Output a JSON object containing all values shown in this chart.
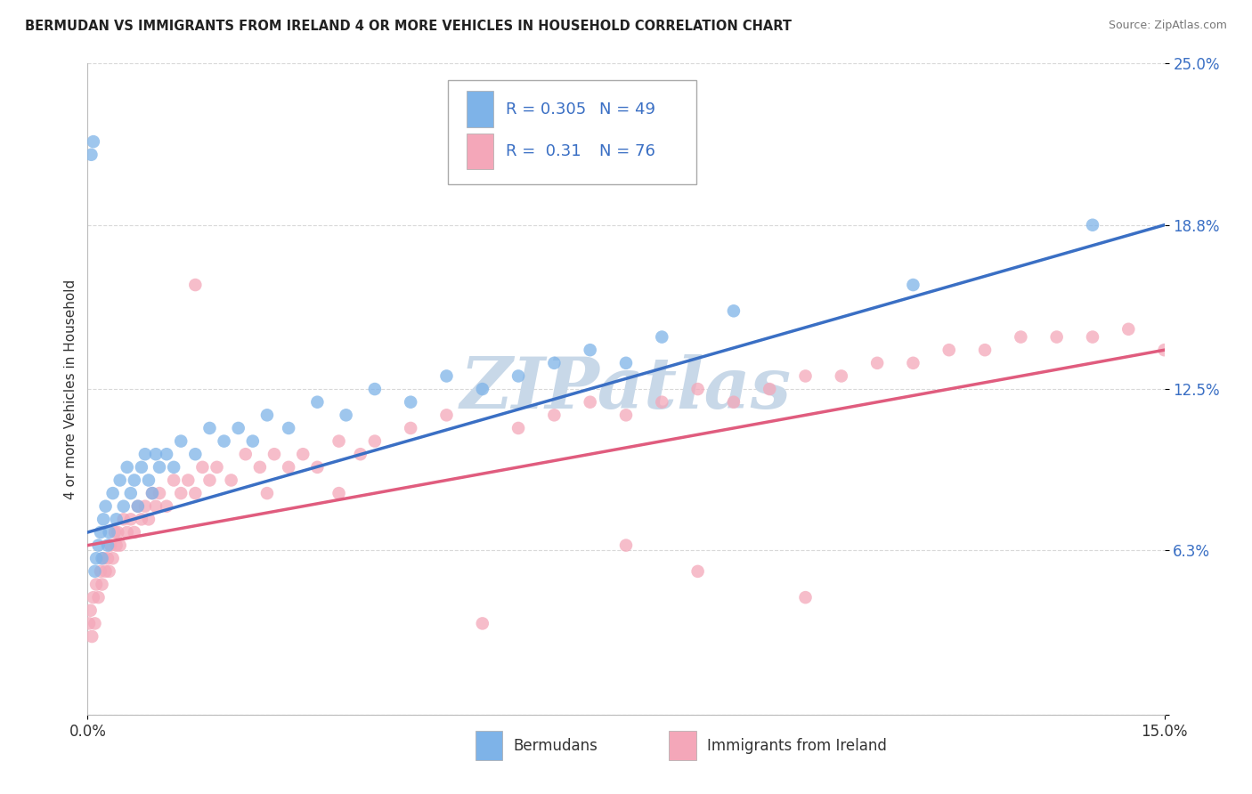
{
  "title": "BERMUDAN VS IMMIGRANTS FROM IRELAND 4 OR MORE VEHICLES IN HOUSEHOLD CORRELATION CHART",
  "source": "Source: ZipAtlas.com",
  "ylabel": "4 or more Vehicles in Household",
  "x_label_blue": "Bermudans",
  "x_label_pink": "Immigrants from Ireland",
  "xlim": [
    0.0,
    15.0
  ],
  "ylim": [
    0.0,
    25.0
  ],
  "x_ticks": [
    0.0,
    15.0
  ],
  "x_tick_labels": [
    "0.0%",
    "15.0%"
  ],
  "y_ticks": [
    0.0,
    6.3,
    12.5,
    18.8,
    25.0
  ],
  "y_tick_labels": [
    "",
    "6.3%",
    "12.5%",
    "18.8%",
    "25.0%"
  ],
  "blue_R": 0.305,
  "blue_N": 49,
  "pink_R": 0.31,
  "pink_N": 76,
  "blue_color": "#7eb3e8",
  "pink_color": "#f4a7b9",
  "blue_line_color": "#3a6fc4",
  "pink_line_color": "#e05c7e",
  "watermark": "ZIPatlas",
  "watermark_color": "#c8d8e8",
  "background_color": "#ffffff",
  "grid_color": "#d0d0d0",
  "blue_line_x0": 0.0,
  "blue_line_y0": 7.0,
  "blue_line_x1": 15.0,
  "blue_line_y1": 18.8,
  "pink_line_x0": 0.0,
  "pink_line_y0": 6.5,
  "pink_line_x1": 15.0,
  "pink_line_y1": 14.0,
  "blue_x": [
    0.05,
    0.08,
    0.1,
    0.12,
    0.15,
    0.18,
    0.2,
    0.22,
    0.25,
    0.28,
    0.3,
    0.35,
    0.4,
    0.45,
    0.5,
    0.55,
    0.6,
    0.65,
    0.7,
    0.75,
    0.8,
    0.85,
    0.9,
    0.95,
    1.0,
    1.1,
    1.2,
    1.3,
    1.5,
    1.7,
    1.9,
    2.1,
    2.3,
    2.5,
    2.8,
    3.2,
    3.6,
    4.0,
    4.5,
    5.0,
    5.5,
    6.0,
    6.5,
    7.0,
    7.5,
    8.0,
    9.0,
    11.5,
    14.0
  ],
  "blue_y": [
    21.5,
    22.0,
    5.5,
    6.0,
    6.5,
    7.0,
    6.0,
    7.5,
    8.0,
    6.5,
    7.0,
    8.5,
    7.5,
    9.0,
    8.0,
    9.5,
    8.5,
    9.0,
    8.0,
    9.5,
    10.0,
    9.0,
    8.5,
    10.0,
    9.5,
    10.0,
    9.5,
    10.5,
    10.0,
    11.0,
    10.5,
    11.0,
    10.5,
    11.5,
    11.0,
    12.0,
    11.5,
    12.5,
    12.0,
    13.0,
    12.5,
    13.0,
    13.5,
    14.0,
    13.5,
    14.5,
    15.5,
    16.5,
    18.8
  ],
  "pink_x": [
    0.02,
    0.04,
    0.06,
    0.08,
    0.1,
    0.12,
    0.15,
    0.18,
    0.2,
    0.22,
    0.25,
    0.28,
    0.3,
    0.32,
    0.35,
    0.38,
    0.4,
    0.42,
    0.45,
    0.5,
    0.55,
    0.6,
    0.65,
    0.7,
    0.75,
    0.8,
    0.85,
    0.9,
    0.95,
    1.0,
    1.1,
    1.2,
    1.3,
    1.4,
    1.5,
    1.6,
    1.7,
    1.8,
    2.0,
    2.2,
    2.4,
    2.6,
    2.8,
    3.0,
    3.2,
    3.5,
    3.8,
    4.0,
    4.5,
    5.0,
    5.5,
    6.0,
    6.5,
    7.0,
    7.5,
    8.0,
    8.5,
    9.0,
    9.5,
    10.0,
    10.5,
    11.0,
    11.5,
    12.0,
    12.5,
    13.0,
    13.5,
    14.0,
    14.5,
    15.0,
    1.5,
    2.5,
    3.5,
    7.5,
    8.5,
    10.0
  ],
  "pink_y": [
    3.5,
    4.0,
    3.0,
    4.5,
    3.5,
    5.0,
    4.5,
    5.5,
    5.0,
    6.0,
    5.5,
    6.0,
    5.5,
    6.5,
    6.0,
    7.0,
    6.5,
    7.0,
    6.5,
    7.5,
    7.0,
    7.5,
    7.0,
    8.0,
    7.5,
    8.0,
    7.5,
    8.5,
    8.0,
    8.5,
    8.0,
    9.0,
    8.5,
    9.0,
    8.5,
    9.5,
    9.0,
    9.5,
    9.0,
    10.0,
    9.5,
    10.0,
    9.5,
    10.0,
    9.5,
    10.5,
    10.0,
    10.5,
    11.0,
    11.5,
    3.5,
    11.0,
    11.5,
    12.0,
    11.5,
    12.0,
    12.5,
    12.0,
    12.5,
    13.0,
    13.0,
    13.5,
    13.5,
    14.0,
    14.0,
    14.5,
    14.5,
    14.5,
    14.8,
    14.0,
    16.5,
    8.5,
    8.5,
    6.5,
    5.5,
    4.5
  ]
}
